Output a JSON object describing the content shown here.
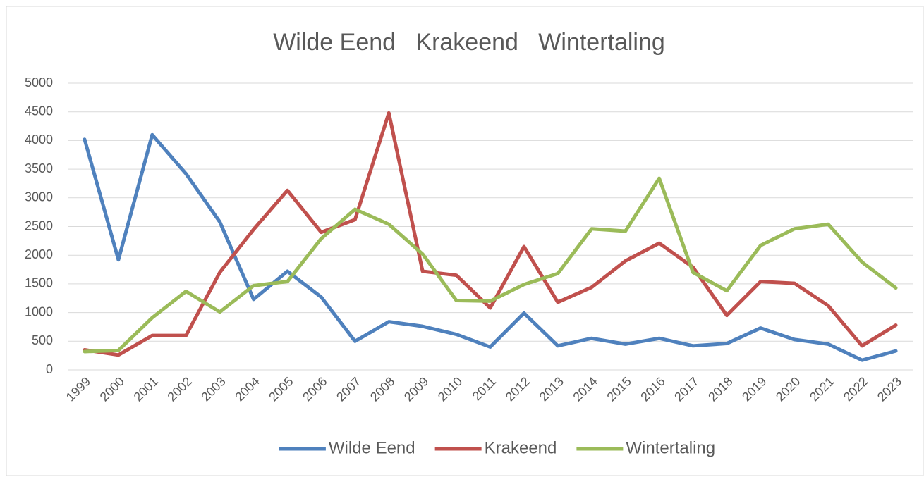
{
  "chart_data": {
    "type": "line",
    "title": "Wilde Eend   Krakeend   Wintertaling",
    "categories": [
      "1999",
      "2000",
      "2001",
      "2002",
      "2003",
      "2004",
      "2005",
      "2006",
      "2007",
      "2008",
      "2009",
      "2010",
      "2011",
      "2012",
      "2013",
      "2014",
      "2015",
      "2016",
      "2017",
      "2018",
      "2019",
      "2020",
      "2021",
      "2022",
      "2023"
    ],
    "series": [
      {
        "name": "Wilde Eend",
        "color": "#4f81bd",
        "values": [
          4020,
          1920,
          4100,
          3420,
          2580,
          1230,
          1720,
          1270,
          500,
          840,
          760,
          620,
          400,
          990,
          420,
          550,
          450,
          550,
          420,
          460,
          730,
          530,
          450,
          170,
          330
        ]
      },
      {
        "name": "Krakeend",
        "color": "#c0504d",
        "values": [
          350,
          260,
          600,
          600,
          1700,
          2450,
          3130,
          2400,
          2620,
          4480,
          1720,
          1650,
          1080,
          2150,
          1180,
          1440,
          1900,
          2210,
          1790,
          950,
          1540,
          1510,
          1120,
          420,
          780
        ]
      },
      {
        "name": "Wintertaling",
        "color": "#9bbb59",
        "values": [
          320,
          340,
          910,
          1370,
          1010,
          1470,
          1540,
          2290,
          2800,
          2540,
          2020,
          1210,
          1200,
          1490,
          1680,
          2460,
          2420,
          3340,
          1700,
          1380,
          2170,
          2460,
          2540,
          1880,
          1430
        ]
      }
    ],
    "ylim": [
      0,
      5000
    ],
    "yticks": [
      0,
      500,
      1000,
      1500,
      2000,
      2500,
      3000,
      3500,
      4000,
      4500,
      5000
    ],
    "grid": true,
    "legend": "bottom"
  }
}
